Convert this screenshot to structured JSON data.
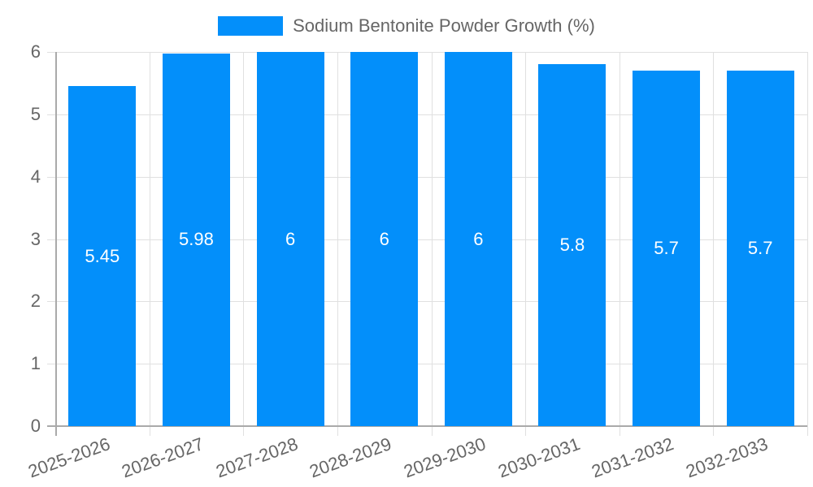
{
  "chart_data": {
    "type": "bar",
    "title": "",
    "xlabel": "",
    "ylabel": "",
    "ylim": [
      0,
      6
    ],
    "yticks": [
      0,
      1,
      2,
      3,
      4,
      5,
      6
    ],
    "grid": true,
    "legend_position": "top",
    "categories": [
      "2025-2026",
      "2026-2027",
      "2027-2028",
      "2028-2029",
      "2029-2030",
      "2030-2031",
      "2031-2032",
      "2032-2033"
    ],
    "series": [
      {
        "name": "Sodium Bentonite Powder Growth (%)",
        "color": "#038ffa",
        "values": [
          5.45,
          5.98,
          6,
          6,
          6,
          5.8,
          5.7,
          5.7
        ],
        "data_labels": [
          "5.45",
          "5.98",
          "6",
          "6",
          "6",
          "5.8",
          "5.7",
          "5.7"
        ]
      }
    ]
  },
  "legend": {
    "label": "Sodium Bentonite Powder Growth (%)",
    "color": "#038ffa"
  }
}
